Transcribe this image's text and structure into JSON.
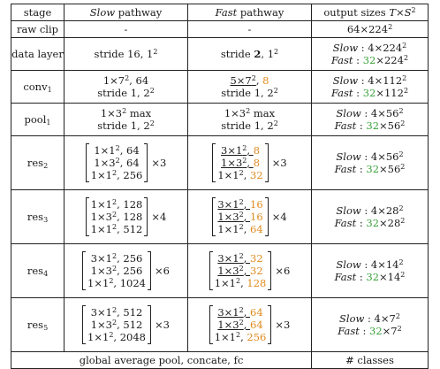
{
  "header": {
    "stage": "stage",
    "slow_italic": "Slow",
    "slow_rest": " pathway",
    "fast_italic": "Fast",
    "fast_rest": " pathway",
    "output_prefix": "output sizes ",
    "output_T": "T",
    "output_times": "×",
    "output_S": "S",
    "output_exp": "2"
  },
  "rows": {
    "raw_clip": {
      "stage": "raw clip",
      "slow": "-",
      "fast": "-",
      "out": "64×224",
      "out_exp": "2"
    },
    "data_layer": {
      "stage": "data layer",
      "slow": "stride 16, 1",
      "slow_exp": "2",
      "fast_pre": "stride ",
      "fast_bold": "2",
      "fast_post": ", 1",
      "fast_exp": "2",
      "out1_label": "Slow",
      "out1_val": " : 4×224",
      "out1_exp": "2",
      "out2_label": "Fast",
      "out2_sep": " : ",
      "out2_green": "32",
      "out2_val": "×224",
      "out2_exp": "2"
    },
    "conv1": {
      "stage": "conv",
      "stage_sub": "1",
      "slow1_pre": "1×7",
      "slow1_exp": "2",
      "slow1_post": ", 64",
      "slow2": "stride 1, 2",
      "slow2_exp": "2",
      "fast1_pre": "5×7",
      "fast1_exp": "2",
      "fast1_sep": ", ",
      "fast1_orange": "8",
      "fast2": "stride 1, 2",
      "fast2_exp": "2",
      "out1_label": "Slow",
      "out1_val": " : 4×112",
      "out1_exp": "2",
      "out2_label": "Fast",
      "out2_sep": " : ",
      "out2_green": "32",
      "out2_val": "×112",
      "out2_exp": "2"
    },
    "pool1": {
      "stage": "pool",
      "stage_sub": "1",
      "slow1_pre": "1×3",
      "slow1_exp": "2",
      "slow1_post": " max",
      "slow2": "stride 1, 2",
      "slow2_exp": "2",
      "fast1_pre": "1×3",
      "fast1_exp": "2",
      "fast1_post": " max",
      "fast2": "stride 1, 2",
      "fast2_exp": "2",
      "out1_label": "Slow",
      "out1_val": " : 4×56",
      "out1_exp": "2",
      "out2_label": "Fast",
      "out2_sep": " : ",
      "out2_green": "32",
      "out2_val": "×56",
      "out2_exp": "2"
    },
    "res2": {
      "stage": "res",
      "stage_sub": "2",
      "slow": [
        {
          "pre": "1×1",
          "exp": "2",
          "post": ", 64"
        },
        {
          "pre": "1×3",
          "exp": "2",
          "post": ", 64"
        },
        {
          "pre": "1×1",
          "exp": "2",
          "post": ", 256"
        }
      ],
      "slow_mult": "×3",
      "fast": [
        {
          "pre": "3×1",
          "exp": "2",
          "sep": ", ",
          "orange": "8"
        },
        {
          "pre": "1×3",
          "exp": "2",
          "sep": ", ",
          "orange": "8"
        },
        {
          "pre": "1×1",
          "exp": "2",
          "sep": ", ",
          "orange": "32"
        }
      ],
      "fast_mult": "×3",
      "out1_label": "Slow",
      "out1_val": " : 4×56",
      "out1_exp": "2",
      "out2_label": "Fast",
      "out2_sep": " : ",
      "out2_green": "32",
      "out2_val": "×56",
      "out2_exp": "2"
    },
    "res3": {
      "stage": "res",
      "stage_sub": "3",
      "slow": [
        {
          "pre": "1×1",
          "exp": "2",
          "post": ", 128"
        },
        {
          "pre": "1×3",
          "exp": "2",
          "post": ", 128"
        },
        {
          "pre": "1×1",
          "exp": "2",
          "post": ", 512"
        }
      ],
      "slow_mult": "×4",
      "fast": [
        {
          "pre": "3×1",
          "exp": "2",
          "sep": ", ",
          "orange": "16"
        },
        {
          "pre": "1×3",
          "exp": "2",
          "sep": ", ",
          "orange": "16"
        },
        {
          "pre": "1×1",
          "exp": "2",
          "sep": ", ",
          "orange": "64"
        }
      ],
      "fast_mult": "×4",
      "out1_label": "Slow",
      "out1_val": " : 4×28",
      "out1_exp": "2",
      "out2_label": "Fast",
      "out2_sep": " : ",
      "out2_green": "32",
      "out2_val": "×28",
      "out2_exp": "2"
    },
    "res4": {
      "stage": "res",
      "stage_sub": "4",
      "slow": [
        {
          "pre": "3×1",
          "exp": "2",
          "post": ", 256"
        },
        {
          "pre": "1×3",
          "exp": "2",
          "post": ", 256"
        },
        {
          "pre": "1×1",
          "exp": "2",
          "post": ", 1024"
        }
      ],
      "slow_mult": "×6",
      "fast": [
        {
          "pre": "3×1",
          "exp": "2",
          "sep": ", ",
          "orange": "32"
        },
        {
          "pre": "1×3",
          "exp": "2",
          "sep": ", ",
          "orange": "32"
        },
        {
          "pre": "1×1",
          "exp": "2",
          "sep": ", ",
          "orange": "128"
        }
      ],
      "fast_mult": "×6",
      "out1_label": "Slow",
      "out1_val": " : 4×14",
      "out1_exp": "2",
      "out2_label": "Fast",
      "out2_sep": " : ",
      "out2_green": "32",
      "out2_val": "×14",
      "out2_exp": "2"
    },
    "res5": {
      "stage": "res",
      "stage_sub": "5",
      "slow": [
        {
          "pre": "3×1",
          "exp": "2",
          "post": ", 512"
        },
        {
          "pre": "1×3",
          "exp": "2",
          "post": ", 512"
        },
        {
          "pre": "1×1",
          "exp": "2",
          "post": ", 2048"
        }
      ],
      "slow_mult": "×3",
      "fast": [
        {
          "pre": "3×1",
          "exp": "2",
          "sep": ", ",
          "orange": "64"
        },
        {
          "pre": "1×3",
          "exp": "2",
          "sep": ", ",
          "orange": "64"
        },
        {
          "pre": "1×1",
          "exp": "2",
          "sep": ", ",
          "orange": "256"
        }
      ],
      "fast_mult": "×3",
      "out1_label": "Slow",
      "out1_val": " : 4×7",
      "out1_exp": "2",
      "out2_label": "Fast",
      "out2_sep": " : ",
      "out2_green": "32",
      "out2_val": "×7",
      "out2_exp": "2"
    },
    "final": {
      "label": "global average pool, concate, fc",
      "out": "# classes"
    }
  },
  "colors": {
    "orange": "#e08a1e",
    "green": "#3aa23a"
  }
}
